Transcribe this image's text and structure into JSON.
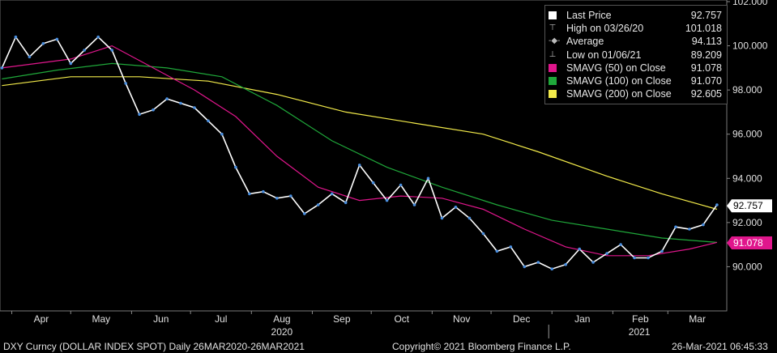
{
  "legend": {
    "items": [
      {
        "label": "Last Price",
        "value": "92.757",
        "icon": "square-swatch",
        "color": "#ffffff"
      },
      {
        "label": "High on 03/26/20",
        "value": "101.018",
        "icon": "high-marker-icon"
      },
      {
        "label": "Average",
        "value": "94.113",
        "icon": "average-marker-icon"
      },
      {
        "label": "Low on 01/06/21",
        "value": "89.209",
        "icon": "low-marker-icon"
      },
      {
        "label": "SMAVG (50)  on Close",
        "value": "91.078",
        "icon": "square-swatch",
        "color": "#e0168c"
      },
      {
        "label": "SMAVG (100)  on Close",
        "value": "91.070",
        "icon": "square-swatch",
        "color": "#1fa83a"
      },
      {
        "label": "SMAVG (200)  on Close",
        "value": "92.605",
        "icon": "square-swatch",
        "color": "#f2ea4a"
      }
    ]
  },
  "footer": {
    "ticker": "DXY Curncy (DOLLAR INDEX SPOT)  Daily 26MAR2020-26MAR2021",
    "copyright": "Copyright© 2021 Bloomberg Finance L.P.",
    "timestamp": "26-Mar-2021 06:45:33"
  },
  "chart_data": {
    "type": "line",
    "ylim": [
      88.0,
      102.0
    ],
    "y_ticks": [
      "90.000",
      "92.000",
      "94.000",
      "96.000",
      "98.000",
      "100.000",
      "102.000"
    ],
    "x_month_labels": [
      "Apr",
      "May",
      "Jun",
      "Jul",
      "Aug",
      "Sep",
      "Oct",
      "Nov",
      "Dec",
      "Jan",
      "Feb",
      "Mar"
    ],
    "x_year_labels": [
      "2020",
      "2021"
    ],
    "price_tag": {
      "value": 92.757,
      "label": "92.757",
      "color": "#ffffff"
    },
    "sma50_tag": {
      "value": 91.078,
      "label": "91.078",
      "color": "#e0168c"
    },
    "grid": false,
    "series": [
      {
        "name": "Last Price",
        "color": "#ffffff",
        "x": [
          "2020-03-27",
          "2020-04-03",
          "2020-04-10",
          "2020-04-17",
          "2020-04-24",
          "2020-05-01",
          "2020-05-08",
          "2020-05-15",
          "2020-05-22",
          "2020-05-29",
          "2020-06-05",
          "2020-06-12",
          "2020-06-19",
          "2020-06-26",
          "2020-07-03",
          "2020-07-10",
          "2020-07-17",
          "2020-07-24",
          "2020-07-31",
          "2020-08-07",
          "2020-08-14",
          "2020-08-21",
          "2020-08-28",
          "2020-09-04",
          "2020-09-11",
          "2020-09-18",
          "2020-09-25",
          "2020-10-02",
          "2020-10-09",
          "2020-10-16",
          "2020-10-23",
          "2020-10-30",
          "2020-11-06",
          "2020-11-13",
          "2020-11-20",
          "2020-11-27",
          "2020-12-04",
          "2020-12-11",
          "2020-12-18",
          "2020-12-25",
          "2021-01-01",
          "2021-01-08",
          "2021-01-15",
          "2021-01-22",
          "2021-01-29",
          "2021-02-05",
          "2021-02-12",
          "2021-02-19",
          "2021-02-26",
          "2021-03-05",
          "2021-03-12",
          "2021-03-19",
          "2021-03-26"
        ],
        "values": [
          99.0,
          100.4,
          99.5,
          100.1,
          100.3,
          99.2,
          99.8,
          100.4,
          99.8,
          98.3,
          96.9,
          97.1,
          97.6,
          97.4,
          97.2,
          96.6,
          96.0,
          94.5,
          93.3,
          93.4,
          93.1,
          93.2,
          92.4,
          92.8,
          93.3,
          92.9,
          94.6,
          93.8,
          93.0,
          93.7,
          92.8,
          94.0,
          92.2,
          92.7,
          92.2,
          91.5,
          90.7,
          90.9,
          90.0,
          90.2,
          89.9,
          90.1,
          90.8,
          90.2,
          90.6,
          91.0,
          90.4,
          90.4,
          90.7,
          91.8,
          91.7,
          91.9,
          92.8
        ]
      },
      {
        "name": "SMAVG (50)  on Close",
        "color": "#e0168c",
        "x": [
          "2020-03-27",
          "2020-05-01",
          "2020-05-22",
          "2020-06-12",
          "2020-07-03",
          "2020-07-24",
          "2020-08-14",
          "2020-09-04",
          "2020-09-25",
          "2020-10-16",
          "2020-11-06",
          "2020-11-27",
          "2020-12-18",
          "2021-01-08",
          "2021-01-29",
          "2021-02-19",
          "2021-03-12",
          "2021-03-26"
        ],
        "values": [
          99.0,
          99.4,
          100.0,
          99.0,
          98.0,
          96.8,
          95.0,
          93.6,
          93.0,
          93.2,
          93.1,
          92.6,
          91.7,
          90.9,
          90.5,
          90.5,
          90.8,
          91.1
        ]
      },
      {
        "name": "SMAVG (100)  on Close",
        "color": "#1fa83a",
        "x": [
          "2020-03-27",
          "2020-04-24",
          "2020-05-22",
          "2020-06-19",
          "2020-07-17",
          "2020-08-14",
          "2020-09-11",
          "2020-10-09",
          "2020-11-06",
          "2020-12-04",
          "2021-01-01",
          "2021-01-29",
          "2021-02-26",
          "2021-03-26"
        ],
        "values": [
          98.5,
          98.9,
          99.2,
          99.0,
          98.6,
          97.3,
          95.7,
          94.5,
          93.6,
          92.8,
          92.1,
          91.7,
          91.3,
          91.1
        ]
      },
      {
        "name": "SMAVG (200)  on Close",
        "color": "#f2ea4a",
        "x": [
          "2020-03-27",
          "2020-05-01",
          "2020-06-05",
          "2020-07-10",
          "2020-08-14",
          "2020-09-18",
          "2020-10-23",
          "2020-11-27",
          "2020-12-25",
          "2021-01-29",
          "2021-02-26",
          "2021-03-26"
        ],
        "values": [
          98.2,
          98.6,
          98.6,
          98.4,
          97.8,
          97.0,
          96.5,
          96.0,
          95.2,
          94.1,
          93.3,
          92.6
        ]
      }
    ]
  }
}
